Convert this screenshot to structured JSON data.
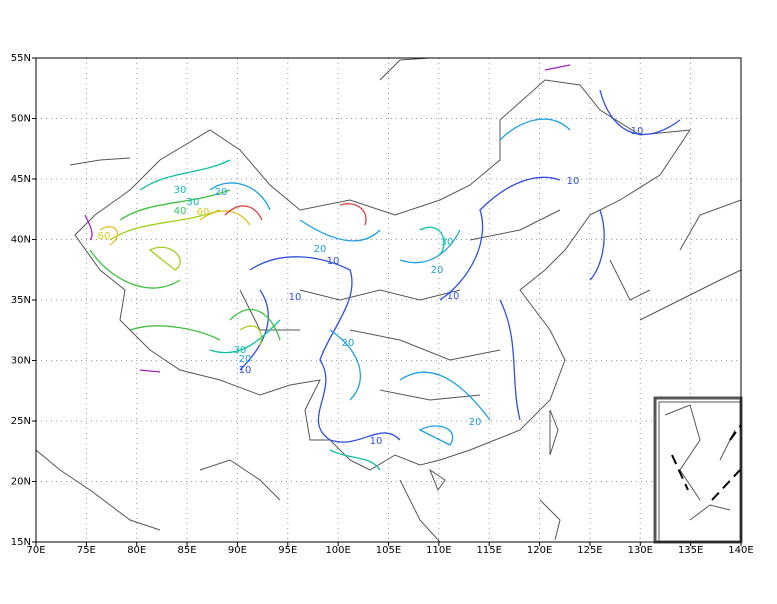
{
  "map": {
    "lon_ticks": [
      {
        "value": 70,
        "label": "70E"
      },
      {
        "value": 75,
        "label": "75E"
      },
      {
        "value": 80,
        "label": "80E"
      },
      {
        "value": 85,
        "label": "85E"
      },
      {
        "value": 90,
        "label": "90E"
      },
      {
        "value": 95,
        "label": "95E"
      },
      {
        "value": 100,
        "label": "100E"
      },
      {
        "value": 105,
        "label": "105E"
      },
      {
        "value": 110,
        "label": "110E"
      },
      {
        "value": 115,
        "label": "115E"
      },
      {
        "value": 120,
        "label": "120E"
      },
      {
        "value": 125,
        "label": "125E"
      },
      {
        "value": 130,
        "label": "130E"
      },
      {
        "value": 135,
        "label": "135E"
      },
      {
        "value": 140,
        "label": "140E"
      }
    ],
    "lat_ticks": [
      {
        "value": 15,
        "label": "15N"
      },
      {
        "value": 20,
        "label": "20N"
      },
      {
        "value": 25,
        "label": "25N"
      },
      {
        "value": 30,
        "label": "30N"
      },
      {
        "value": 35,
        "label": "35N"
      },
      {
        "value": 40,
        "label": "40N"
      },
      {
        "value": 45,
        "label": "45N"
      },
      {
        "value": 50,
        "label": "50N"
      },
      {
        "value": 55,
        "label": "55N"
      }
    ],
    "contour_labels": [
      {
        "text": "30",
        "color": "#10b8c0"
      },
      {
        "text": "20",
        "color": "#20a0e0"
      },
      {
        "text": "30",
        "color": "#10b8c0"
      },
      {
        "text": "40",
        "color": "#30c060"
      },
      {
        "text": "60",
        "color": "#d0d020"
      },
      {
        "text": "60",
        "color": "#d0d020"
      },
      {
        "text": "20",
        "color": "#20a0e0"
      },
      {
        "text": "10",
        "color": "#3050e0"
      },
      {
        "text": "10",
        "color": "#3050e0"
      },
      {
        "text": "30",
        "color": "#10b8c0"
      },
      {
        "text": "20",
        "color": "#20a0e0"
      },
      {
        "text": "10",
        "color": "#3050e0"
      },
      {
        "text": "20",
        "color": "#20a0e0"
      },
      {
        "text": "30",
        "color": "#10b8c0"
      },
      {
        "text": "20",
        "color": "#20a0e0"
      },
      {
        "text": "10",
        "color": "#3050e0"
      },
      {
        "text": "10",
        "color": "#3050e0"
      },
      {
        "text": "10",
        "color": "#3050e0"
      },
      {
        "text": "20",
        "color": "#20a0e0"
      },
      {
        "text": "10",
        "color": "#3050e0"
      }
    ]
  }
}
